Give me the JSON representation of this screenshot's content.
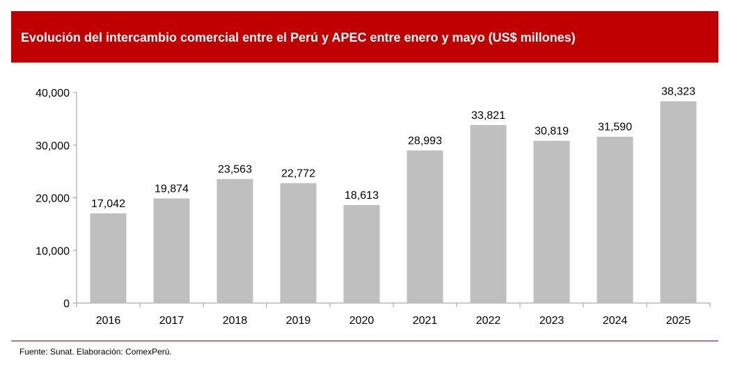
{
  "header": {
    "title": "Evolución del intercambio comercial entre el Perú y APEC entre enero y mayo (US$ millones)",
    "background_color": "#c00000"
  },
  "chart_data": {
    "type": "bar",
    "title": "Evolución del intercambio comercial entre el Perú y APEC entre enero y mayo (US$ millones)",
    "categories": [
      "2016",
      "2017",
      "2018",
      "2019",
      "2020",
      "2021",
      "2022",
      "2023",
      "2024",
      "2025"
    ],
    "values": [
      17042,
      19874,
      23563,
      22772,
      18613,
      28993,
      33821,
      30819,
      31590,
      38323
    ],
    "data_labels": [
      "17,042",
      "19,874",
      "23,563",
      "22,772",
      "18,613",
      "28,993",
      "33,821",
      "30,819",
      "31,590",
      "38,323"
    ],
    "xlabel": "",
    "ylabel": "",
    "ylim": [
      0,
      40000
    ],
    "yticks": [
      0,
      10000,
      20000,
      30000,
      40000
    ],
    "ytick_labels": [
      "0",
      "10,000",
      "20,000",
      "30,000",
      "40,000"
    ],
    "grid": false,
    "legend": "none",
    "bar_color": "#bfbfbf"
  },
  "footer": {
    "source": "Fuente: Sunat. Elaboración: ComexPerú."
  }
}
